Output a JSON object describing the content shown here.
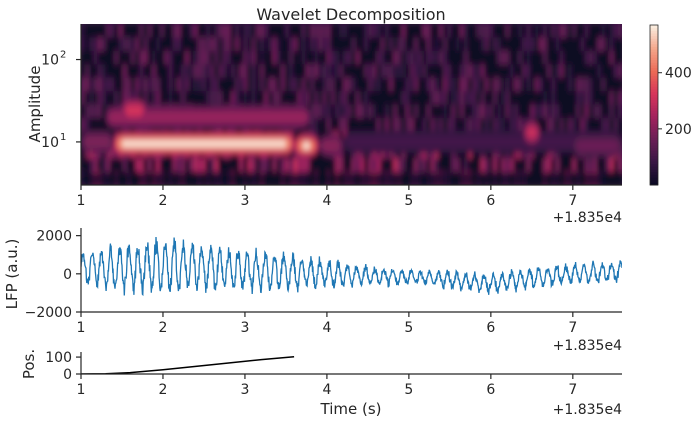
{
  "colors": {
    "lfp_line": "#1f77b4",
    "position_line": "#000000",
    "axis": "#262626",
    "colormap": [
      "#0b0924",
      "#3a1845",
      "#6b1f56",
      "#a3235d",
      "#d6345b",
      "#ec6a56",
      "#f4a58a",
      "#faebdd"
    ]
  },
  "chart_data": [
    {
      "type": "heatmap",
      "title": "Wavelet Decomposition",
      "xlabel": "",
      "ylabel": "Amplitude",
      "x_range": [
        18351,
        18357.6
      ],
      "y_range": [
        3,
        270
      ],
      "y_scale": "log",
      "x_ticks": [
        "1",
        "2",
        "3",
        "4",
        "5",
        "6",
        "7"
      ],
      "y_ticks": [
        {
          "exp": "1",
          "value": 10
        },
        {
          "exp": "2",
          "value": 100
        }
      ],
      "offset_label": "+1.835e4",
      "colorbar": {
        "ticks": [
          "200",
          "400"
        ],
        "tick_values": [
          200,
          400
        ],
        "range": [
          0,
          570
        ]
      },
      "bands": [
        {
          "start": 18351.0,
          "end": 18351.4,
          "freq": 10,
          "power": 230
        },
        {
          "start": 18351.4,
          "end": 18353.6,
          "freq": 9.5,
          "power": 560
        },
        {
          "start": 18353.6,
          "end": 18353.9,
          "freq": 9,
          "power": 520
        },
        {
          "start": 18353.9,
          "end": 18354.2,
          "freq": 9,
          "power": 250
        },
        {
          "start": 18351.3,
          "end": 18353.8,
          "freq": 20,
          "power": 280
        },
        {
          "start": 18351.5,
          "end": 18351.8,
          "freq": 24,
          "power": 400
        },
        {
          "start": 18354.2,
          "end": 18357.6,
          "freq": 10,
          "power": 120
        },
        {
          "start": 18356.4,
          "end": 18356.6,
          "freq": 13,
          "power": 380
        },
        {
          "start": 18357.0,
          "end": 18357.6,
          "freq": 9,
          "power": 200
        }
      ]
    },
    {
      "type": "line",
      "xlabel": "",
      "ylabel": "LFP (a.u.)",
      "x_range": [
        18351,
        18357.6
      ],
      "ylim": [
        -2000,
        2400
      ],
      "x_ticks": [
        "1",
        "2",
        "3",
        "4",
        "5",
        "6",
        "7"
      ],
      "y_ticks": [
        "2000",
        "0",
        "−2000"
      ],
      "y_tick_values": [
        2000,
        0,
        -2000
      ],
      "offset_label": "+1.835e4",
      "oscillation_hz": 9,
      "envelope": [
        {
          "t": 18351.0,
          "amp": 700,
          "base": 300
        },
        {
          "t": 18351.5,
          "amp": 1000,
          "base": 300
        },
        {
          "t": 18352.0,
          "amp": 1200,
          "base": 400
        },
        {
          "t": 18352.5,
          "amp": 1000,
          "base": 300
        },
        {
          "t": 18353.0,
          "amp": 900,
          "base": 200
        },
        {
          "t": 18353.5,
          "amp": 800,
          "base": 100
        },
        {
          "t": 18354.0,
          "amp": 600,
          "base": 0
        },
        {
          "t": 18354.5,
          "amp": 400,
          "base": -100
        },
        {
          "t": 18355.0,
          "amp": 300,
          "base": -150
        },
        {
          "t": 18355.5,
          "amp": 350,
          "base": -300
        },
        {
          "t": 18356.0,
          "amp": 400,
          "base": -500
        },
        {
          "t": 18356.5,
          "amp": 450,
          "base": -200
        },
        {
          "t": 18357.0,
          "amp": 400,
          "base": 0
        },
        {
          "t": 18357.6,
          "amp": 450,
          "base": 100
        }
      ]
    },
    {
      "type": "line",
      "xlabel": "Time (s)",
      "ylabel": "Pos.",
      "x_range": [
        18351,
        18357.6
      ],
      "ylim": [
        0,
        130
      ],
      "x_ticks": [
        "1",
        "2",
        "3",
        "4",
        "5",
        "6",
        "7"
      ],
      "y_ticks": [
        "100",
        "0"
      ],
      "y_tick_values": [
        100,
        0
      ],
      "offset_label": "+1.835e4",
      "x": [
        18351.0,
        18351.3,
        18351.6,
        18352.0,
        18352.4,
        18352.8,
        18353.2,
        18353.6
      ],
      "y": [
        0,
        2,
        8,
        25,
        45,
        65,
        85,
        102
      ]
    }
  ]
}
